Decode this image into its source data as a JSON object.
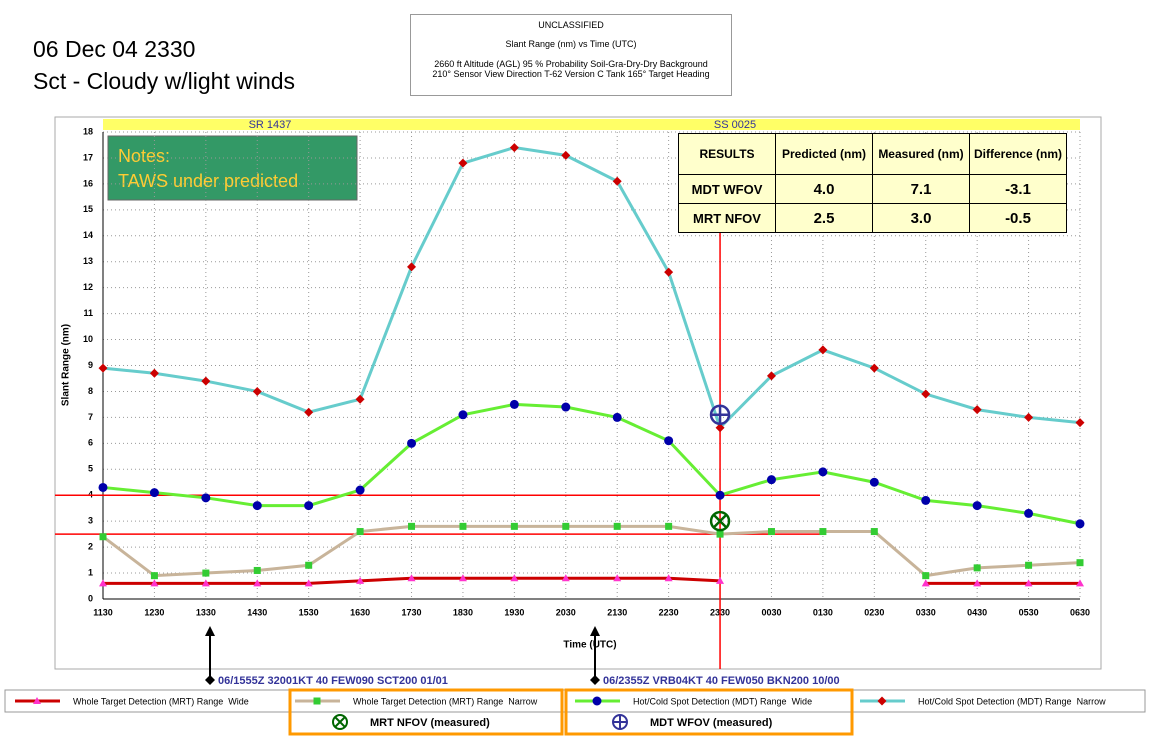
{
  "header": {
    "date": "06 Dec 04 2330",
    "conditions": "Sct - Cloudy w/light winds"
  },
  "info_box": {
    "classification": "UNCLASSIFIED",
    "title": "Slant Range (nm) vs Time (UTC)",
    "lines": [
      "2660 ft Altitude (AGL)   95 % Probability   Soil-Gra-Dry-Dry Background",
      "210° Sensor View Direction   T-62 Version C Tank   165° Target Heading"
    ]
  },
  "notes": {
    "title": "Notes:",
    "text": "TAWS under predicted"
  },
  "results_table": {
    "rows": [
      [
        "RESULTS",
        "Predicted (nm)",
        "Measured (nm)",
        "Difference (nm)"
      ],
      [
        "MDT WFOV",
        "4.0",
        "7.1",
        "-3.1"
      ],
      [
        "MRT NFOV",
        "2.5",
        "3.0",
        "-0.5"
      ]
    ]
  },
  "weather": [
    "06/1555Z  32001KT 40 FEW090 SCT200 01/01",
    "06/2355Z VRB04KT 40 FEW050 BKN200 10/00"
  ],
  "chart_data": {
    "type": "line",
    "y_label": "Slant Range (nm)",
    "x_label": "Time (UTC)",
    "bar_labels": [
      "SR 1437",
      "SS 0025"
    ],
    "categories": [
      "1130",
      "1230",
      "1330",
      "1430",
      "1530",
      "1630",
      "1730",
      "1830",
      "1930",
      "2030",
      "2130",
      "2230",
      "2330",
      "0030",
      "0130",
      "0230",
      "0330",
      "0430",
      "0530",
      "0630"
    ],
    "ylim": [
      0,
      18
    ],
    "yticks": [
      0,
      1,
      2,
      3,
      4,
      5,
      6,
      7,
      8,
      9,
      10,
      11,
      12,
      13,
      14,
      15,
      16,
      17,
      18
    ],
    "grid": true,
    "series": [
      {
        "name": "Whole Target Detection (MRT) Range  Wide",
        "color": "#cc0000",
        "marker": "triangle",
        "marker_color": "#ff33cc",
        "values": [
          0.6,
          0.6,
          0.6,
          0.6,
          0.6,
          0.7,
          0.8,
          0.8,
          0.8,
          0.8,
          0.8,
          0.8,
          0.7,
          null,
          null,
          null,
          0.6,
          0.6,
          0.6,
          0.6
        ]
      },
      {
        "name": "Whole Target Detection (MRT) Range  Narrow",
        "color": "#c8b49a",
        "marker": "square",
        "marker_color": "#33cc33",
        "values": [
          2.4,
          0.9,
          1.0,
          1.1,
          1.3,
          2.6,
          2.8,
          2.8,
          2.8,
          2.8,
          2.8,
          2.8,
          2.5,
          2.6,
          2.6,
          2.6,
          0.9,
          1.2,
          1.3,
          1.4
        ]
      },
      {
        "name": "Hot/Cold Spot Detection (MDT) Range  Wide",
        "color": "#66ee33",
        "marker": "circle",
        "marker_color": "#0000aa",
        "values": [
          4.3,
          4.1,
          3.9,
          3.6,
          3.6,
          4.2,
          6.0,
          7.1,
          7.5,
          7.4,
          7.0,
          6.1,
          4.0,
          4.6,
          4.9,
          4.5,
          3.8,
          3.6,
          3.3,
          2.9
        ]
      },
      {
        "name": "Hot/Cold Spot Detection (MDT) Range  Narrow",
        "color": "#66cccc",
        "marker": "diamond",
        "marker_color": "#cc0000",
        "values": [
          8.9,
          8.7,
          8.4,
          8.0,
          7.2,
          7.7,
          12.8,
          16.8,
          17.4,
          17.1,
          16.1,
          12.6,
          6.6,
          8.6,
          9.6,
          8.9,
          7.9,
          7.3,
          7.0,
          6.8
        ]
      }
    ],
    "measured": [
      {
        "name": "MRT NFOV (measured)",
        "x": "2330",
        "value": 3.0,
        "symbol": "cross",
        "color": "#006600"
      },
      {
        "name": "MDT WFOV (measured)",
        "x": "2330",
        "value": 7.1,
        "symbol": "plus",
        "color": "#333399"
      }
    ],
    "reference_lines": [
      4.0,
      2.5
    ],
    "reference_x": "2330",
    "reference_color": "#ff0000"
  }
}
